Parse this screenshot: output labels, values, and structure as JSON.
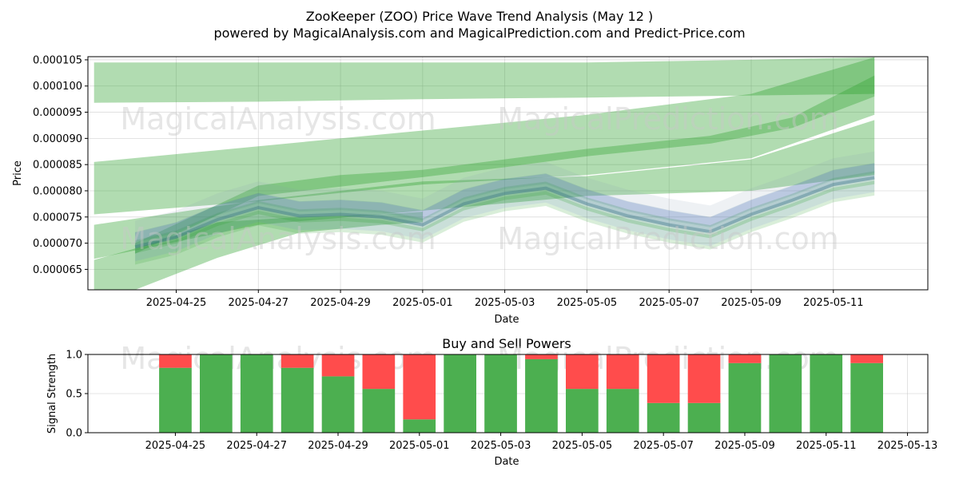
{
  "header": {
    "title": "ZooKeeper (ZOO) Price Wave Trend Analysis (May 12 )",
    "subtitle": "powered by MagicalAnalysis.com and MagicalPrediction.com and Predict-Price.com"
  },
  "watermarks": [
    "MagicalAnalysis.com",
    "MagicalPrediction.com"
  ],
  "colors": {
    "green_band": "#2ca02c",
    "blue_band": "#6b6bff",
    "buy": "#4caf50",
    "sell": "#ff4c4c",
    "grid": "#b0b0b0"
  },
  "chart_data": [
    {
      "type": "area",
      "title": "",
      "xlabel": "Date",
      "ylabel": "Price",
      "x_ticks": [
        "2025-04-25",
        "2025-04-27",
        "2025-04-29",
        "2025-05-01",
        "2025-05-03",
        "2025-05-05",
        "2025-05-07",
        "2025-05-09",
        "2025-05-11"
      ],
      "y_ticks": [
        "0.000065",
        "0.000070",
        "0.000075",
        "0.000080",
        "0.000085",
        "0.000090",
        "0.000095",
        "0.000100",
        "0.000105"
      ],
      "x_range": [
        "2025-04-22",
        "2025-05-13"
      ],
      "ylim": [
        6.11e-05,
        0.0001056
      ],
      "grid": true,
      "dates": [
        "2025-04-24",
        "2025-04-25",
        "2025-04-26",
        "2025-04-27",
        "2025-04-28",
        "2025-04-29",
        "2025-04-30",
        "2025-05-01",
        "2025-05-02",
        "2025-05-03",
        "2025-05-04",
        "2025-05-05",
        "2025-05-06",
        "2025-05-07",
        "2025-05-08",
        "2025-05-09",
        "2025-05-10",
        "2025-05-11",
        "2025-05-12"
      ],
      "price_line": [
        6.93e-05,
        7.12e-05,
        7.45e-05,
        7.68e-05,
        7.52e-05,
        7.55e-05,
        7.5e-05,
        7.35e-05,
        7.75e-05,
        7.95e-05,
        8.05e-05,
        7.75e-05,
        7.52e-05,
        7.35e-05,
        7.22e-05,
        7.55e-05,
        7.82e-05,
        8.12e-05,
        8.25e-05
      ],
      "wide_bands": [
        {
          "x": [
            "2025-04-23",
            "2025-04-27",
            "2025-05-01",
            "2025-05-05",
            "2025-05-09",
            "2025-05-12"
          ],
          "upper": [
            0.0001045,
            0.0001045,
            0.0001045,
            0.0001045,
            0.000105,
            0.0001055
          ],
          "lower": [
            9.68e-05,
            9.7e-05,
            9.75e-05,
            9.78e-05,
            9.82e-05,
            9.85e-05
          ]
        },
        {
          "x": [
            "2025-04-23",
            "2025-04-27",
            "2025-05-01",
            "2025-05-05",
            "2025-05-09",
            "2025-05-12"
          ],
          "upper": [
            8.55e-05,
            8.85e-05,
            9.15e-05,
            9.45e-05,
            9.85e-05,
            0.0001055
          ],
          "lower": [
            7.55e-05,
            7.8e-05,
            8.12e-05,
            8.3e-05,
            8.62e-05,
            9.45e-05
          ]
        },
        {
          "x": [
            "2025-04-23",
            "2025-04-27",
            "2025-05-01",
            "2025-05-05",
            "2025-05-09",
            "2025-05-12"
          ],
          "upper": [
            7.35e-05,
            7.82e-05,
            8.18e-05,
            8.28e-05,
            8.6e-05,
            9.35e-05
          ],
          "lower": [
            6.7e-05,
            7.35e-05,
            7.62e-05,
            7.9e-05,
            8e-05,
            8.3e-05
          ]
        },
        {
          "x": [
            "2025-04-23",
            "2025-04-24",
            "2025-04-26",
            "2025-04-28",
            "2025-04-30",
            "2025-05-01"
          ],
          "upper": [
            6.68e-05,
            6.9e-05,
            7.4e-05,
            7.5e-05,
            7.55e-05,
            7.6e-05
          ],
          "lower": [
            6.11e-05,
            6.11e-05,
            6.72e-05,
            7.2e-05,
            7.35e-05,
            7.4e-05
          ]
        }
      ],
      "green_trend": {
        "x": [
          "2025-04-24",
          "2025-04-27",
          "2025-04-29",
          "2025-05-01",
          "2025-05-03",
          "2025-05-05",
          "2025-05-08",
          "2025-05-10",
          "2025-05-12"
        ],
        "upper": [
          7e-05,
          8.1e-05,
          8.3e-05,
          8.4e-05,
          8.6e-05,
          8.8e-05,
          9.05e-05,
          9.4e-05,
          0.000102
        ],
        "lower": [
          6.8e-05,
          7.9e-05,
          8.08e-05,
          8.26e-05,
          8.45e-05,
          8.66e-05,
          8.9e-05,
          9.2e-05,
          9.8e-05
        ]
      }
    },
    {
      "type": "bar",
      "title": "Buy and Sell Powers",
      "xlabel": "Date",
      "ylabel": "Signal Strength",
      "x_ticks": [
        "2025-04-25",
        "2025-04-27",
        "2025-04-29",
        "2025-05-01",
        "2025-05-03",
        "2025-05-05",
        "2025-05-07",
        "2025-05-09",
        "2025-05-11",
        "2025-05-13"
      ],
      "y_ticks": [
        "0.0",
        "0.5",
        "1.0"
      ],
      "ylim": [
        0,
        1
      ],
      "grid": true,
      "categories": [
        "2025-04-25",
        "2025-04-26",
        "2025-04-27",
        "2025-04-28",
        "2025-04-29",
        "2025-04-30",
        "2025-05-01",
        "2025-05-02",
        "2025-05-03",
        "2025-05-04",
        "2025-05-05",
        "2025-05-06",
        "2025-05-07",
        "2025-05-08",
        "2025-05-09",
        "2025-05-10",
        "2025-05-11",
        "2025-05-12"
      ],
      "series": [
        {
          "values": [
            0.83,
            1.0,
            1.0,
            0.83,
            0.72,
            0.56,
            0.17,
            1.0,
            1.0,
            0.94,
            0.56,
            0.56,
            0.38,
            0.38,
            0.89,
            1.0,
            1.0,
            0.89
          ]
        },
        {
          "values": [
            0.17,
            0.0,
            0.0,
            0.17,
            0.28,
            0.44,
            0.83,
            0.0,
            0.0,
            0.06,
            0.44,
            0.44,
            0.62,
            0.62,
            0.11,
            0.0,
            0.0,
            0.11
          ]
        }
      ]
    }
  ]
}
